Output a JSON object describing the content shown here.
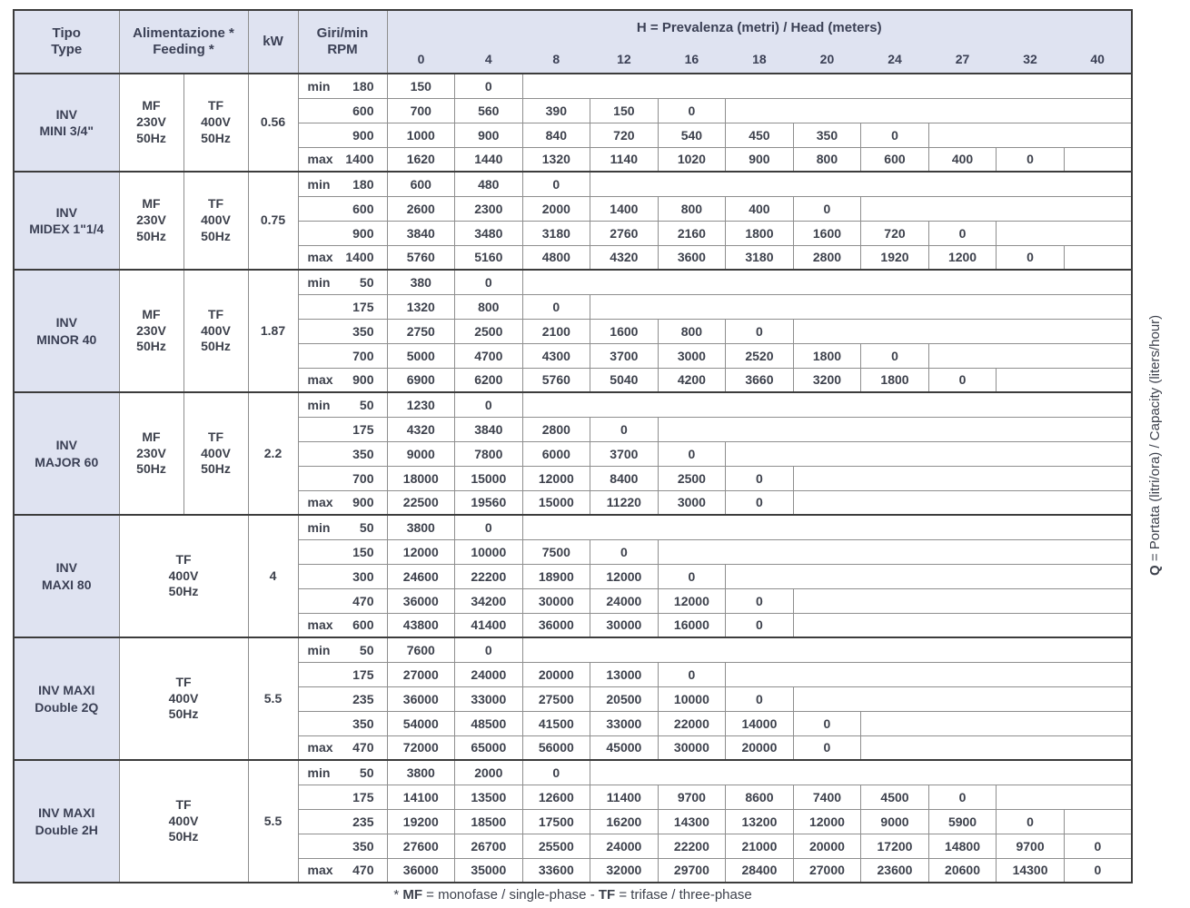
{
  "colors": {
    "header_bg": "#dfe3f1",
    "border_strong": "#3c3c3c",
    "border_light": "#8e8e8e",
    "text": "#3d414c"
  },
  "header": {
    "tipo": [
      "Tipo",
      "Type"
    ],
    "feeding": [
      "Alimentazione *",
      "Feeding *"
    ],
    "kw": "kW",
    "rpm": [
      "Giri/min",
      "RPM"
    ],
    "head_title": [
      {
        "t": "H",
        "b": true
      },
      {
        "t": " = Prevalenza (metri) / Head (meters)",
        "b": false
      }
    ],
    "head_cols": [
      "0",
      "4",
      "8",
      "12",
      "16",
      "18",
      "20",
      "24",
      "27",
      "32",
      "40"
    ]
  },
  "side_label": [
    {
      "t": "Q",
      "b": true
    },
    {
      "t": " = Portata (litri/ora) / Capacity (liters/hour)",
      "b": false
    }
  ],
  "footnote": [
    {
      "t": "* ",
      "b": false
    },
    {
      "t": "MF",
      "b": true
    },
    {
      "t": " = monofase / single-phase - ",
      "b": false
    },
    {
      "t": "TF",
      "b": true
    },
    {
      "t": " = trifase / three-phase",
      "b": false
    }
  ],
  "groups": [
    {
      "model": [
        "INV",
        "MINI 3/4\""
      ],
      "feeding": [
        [
          "MF",
          "230V",
          "50Hz"
        ],
        [
          "TF",
          "400V",
          "50Hz"
        ]
      ],
      "kw": "0.56",
      "rows": [
        {
          "label": "min",
          "rpm": "180",
          "values": [
            "150",
            "0"
          ]
        },
        {
          "label": "",
          "rpm": "600",
          "values": [
            "700",
            "560",
            "390",
            "150",
            "0"
          ]
        },
        {
          "label": "",
          "rpm": "900",
          "values": [
            "1000",
            "900",
            "840",
            "720",
            "540",
            "450",
            "350",
            "0"
          ]
        },
        {
          "label": "max",
          "rpm": "1400",
          "values": [
            "1620",
            "1440",
            "1320",
            "1140",
            "1020",
            "900",
            "800",
            "600",
            "400",
            "0"
          ]
        }
      ]
    },
    {
      "model": [
        "INV",
        "MIDEX 1\"1/4"
      ],
      "feeding": [
        [
          "MF",
          "230V",
          "50Hz"
        ],
        [
          "TF",
          "400V",
          "50Hz"
        ]
      ],
      "kw": "0.75",
      "rows": [
        {
          "label": "min",
          "rpm": "180",
          "values": [
            "600",
            "480",
            "0"
          ]
        },
        {
          "label": "",
          "rpm": "600",
          "values": [
            "2600",
            "2300",
            "2000",
            "1400",
            "800",
            "400",
            "0"
          ]
        },
        {
          "label": "",
          "rpm": "900",
          "values": [
            "3840",
            "3480",
            "3180",
            "2760",
            "2160",
            "1800",
            "1600",
            "720",
            "0"
          ]
        },
        {
          "label": "max",
          "rpm": "1400",
          "values": [
            "5760",
            "5160",
            "4800",
            "4320",
            "3600",
            "3180",
            "2800",
            "1920",
            "1200",
            "0"
          ]
        }
      ]
    },
    {
      "model": [
        "INV",
        "MINOR 40"
      ],
      "feeding": [
        [
          "MF",
          "230V",
          "50Hz"
        ],
        [
          "TF",
          "400V",
          "50Hz"
        ]
      ],
      "kw": "1.87",
      "rows": [
        {
          "label": "min",
          "rpm": "50",
          "values": [
            "380",
            "0"
          ]
        },
        {
          "label": "",
          "rpm": "175",
          "values": [
            "1320",
            "800",
            "0"
          ]
        },
        {
          "label": "",
          "rpm": "350",
          "values": [
            "2750",
            "2500",
            "2100",
            "1600",
            "800",
            "0"
          ]
        },
        {
          "label": "",
          "rpm": "700",
          "values": [
            "5000",
            "4700",
            "4300",
            "3700",
            "3000",
            "2520",
            "1800",
            "0"
          ]
        },
        {
          "label": "max",
          "rpm": "900",
          "values": [
            "6900",
            "6200",
            "5760",
            "5040",
            "4200",
            "3660",
            "3200",
            "1800",
            "0"
          ]
        }
      ]
    },
    {
      "model": [
        "INV",
        "MAJOR 60"
      ],
      "feeding": [
        [
          "MF",
          "230V",
          "50Hz"
        ],
        [
          "TF",
          "400V",
          "50Hz"
        ]
      ],
      "kw": "2.2",
      "rows": [
        {
          "label": "min",
          "rpm": "50",
          "values": [
            "1230",
            "0"
          ]
        },
        {
          "label": "",
          "rpm": "175",
          "values": [
            "4320",
            "3840",
            "2800",
            "0"
          ]
        },
        {
          "label": "",
          "rpm": "350",
          "values": [
            "9000",
            "7800",
            "6000",
            "3700",
            "0"
          ]
        },
        {
          "label": "",
          "rpm": "700",
          "values": [
            "18000",
            "15000",
            "12000",
            "8400",
            "2500",
            "0"
          ]
        },
        {
          "label": "max",
          "rpm": "900",
          "values": [
            "22500",
            "19560",
            "15000",
            "11220",
            "3000",
            "0"
          ]
        }
      ]
    },
    {
      "model": [
        "INV",
        "MAXI 80"
      ],
      "feeding": [
        [
          "TF",
          "400V",
          "50Hz"
        ]
      ],
      "kw": "4",
      "rows": [
        {
          "label": "min",
          "rpm": "50",
          "values": [
            "3800",
            "0"
          ]
        },
        {
          "label": "",
          "rpm": "150",
          "values": [
            "12000",
            "10000",
            "7500",
            "0"
          ]
        },
        {
          "label": "",
          "rpm": "300",
          "values": [
            "24600",
            "22200",
            "18900",
            "12000",
            "0"
          ]
        },
        {
          "label": "",
          "rpm": "470",
          "values": [
            "36000",
            "34200",
            "30000",
            "24000",
            "12000",
            "0"
          ]
        },
        {
          "label": "max",
          "rpm": "600",
          "values": [
            "43800",
            "41400",
            "36000",
            "30000",
            "16000",
            "0"
          ]
        }
      ]
    },
    {
      "model": [
        "INV MAXI",
        "Double 2Q"
      ],
      "feeding": [
        [
          "TF",
          "400V",
          "50Hz"
        ]
      ],
      "kw": "5.5",
      "rows": [
        {
          "label": "min",
          "rpm": "50",
          "values": [
            "7600",
            "0"
          ]
        },
        {
          "label": "",
          "rpm": "175",
          "values": [
            "27000",
            "24000",
            "20000",
            "13000",
            "0"
          ]
        },
        {
          "label": "",
          "rpm": "235",
          "values": [
            "36000",
            "33000",
            "27500",
            "20500",
            "10000",
            "0"
          ]
        },
        {
          "label": "",
          "rpm": "350",
          "values": [
            "54000",
            "48500",
            "41500",
            "33000",
            "22000",
            "14000",
            "0"
          ]
        },
        {
          "label": "max",
          "rpm": "470",
          "values": [
            "72000",
            "65000",
            "56000",
            "45000",
            "30000",
            "20000",
            "0"
          ]
        }
      ]
    },
    {
      "model": [
        "INV MAXI",
        "Double 2H"
      ],
      "feeding": [
        [
          "TF",
          "400V",
          "50Hz"
        ]
      ],
      "kw": "5.5",
      "rows": [
        {
          "label": "min",
          "rpm": "50",
          "values": [
            "3800",
            "2000",
            "0"
          ]
        },
        {
          "label": "",
          "rpm": "175",
          "values": [
            "14100",
            "13500",
            "12600",
            "11400",
            "9700",
            "8600",
            "7400",
            "4500",
            "0"
          ]
        },
        {
          "label": "",
          "rpm": "235",
          "values": [
            "19200",
            "18500",
            "17500",
            "16200",
            "14300",
            "13200",
            "12000",
            "9000",
            "5900",
            "0"
          ]
        },
        {
          "label": "",
          "rpm": "350",
          "values": [
            "27600",
            "26700",
            "25500",
            "24000",
            "22200",
            "21000",
            "20000",
            "17200",
            "14800",
            "9700",
            "0"
          ]
        },
        {
          "label": "max",
          "rpm": "470",
          "values": [
            "36000",
            "35000",
            "33600",
            "32000",
            "29700",
            "28400",
            "27000",
            "23600",
            "20600",
            "14300",
            "0"
          ]
        }
      ]
    }
  ]
}
